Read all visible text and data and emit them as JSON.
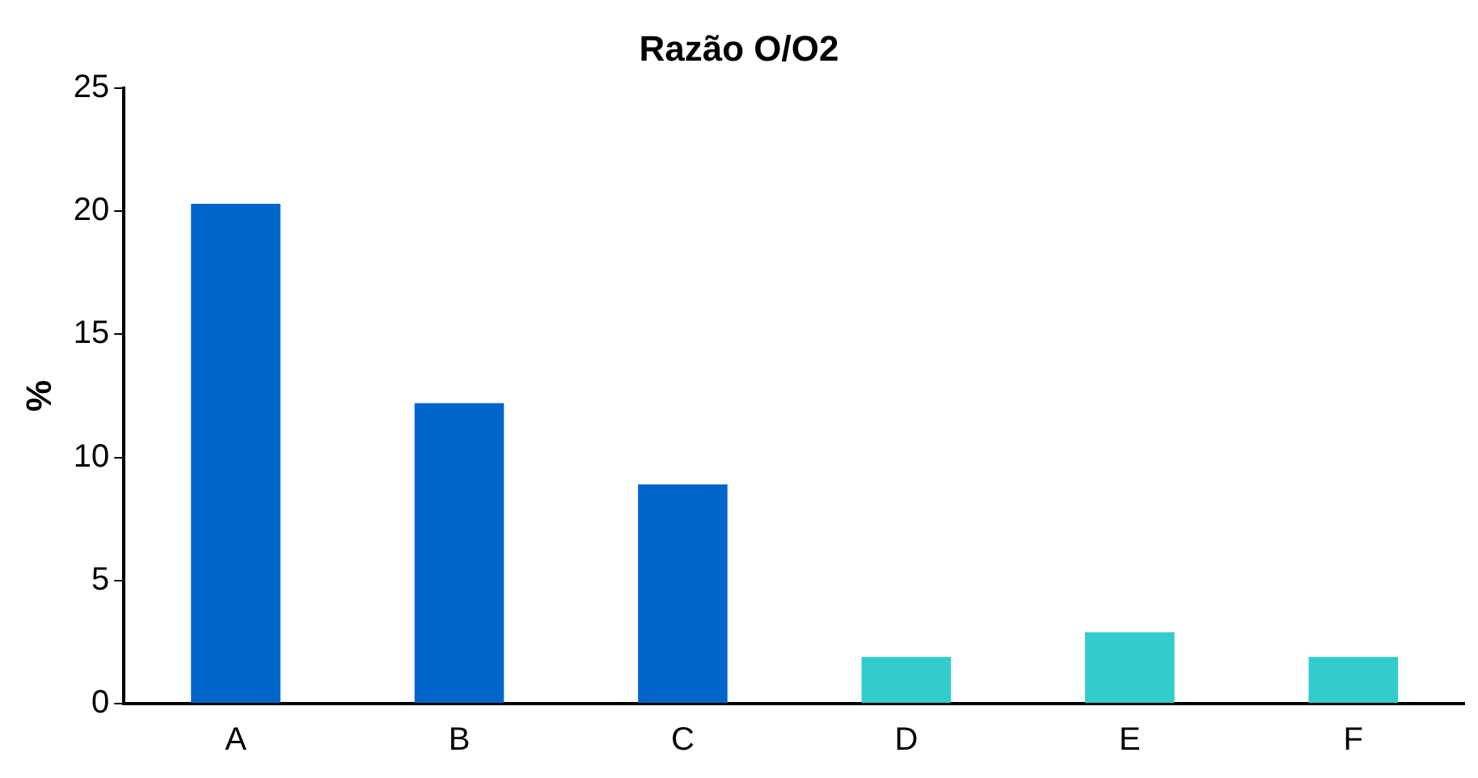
{
  "chart_data": {
    "type": "bar",
    "title": "Razão O/O2",
    "ylabel": "%",
    "categories": [
      "A",
      "B",
      "C",
      "D",
      "E",
      "F"
    ],
    "values": [
      20.3,
      12.2,
      8.9,
      1.9,
      2.9,
      1.9
    ],
    "colors": [
      "#0066cc",
      "#0066cc",
      "#0066cc",
      "#33cccc",
      "#33cccc",
      "#33cccc"
    ],
    "ylim": [
      0,
      25
    ],
    "yticks": [
      0,
      5,
      10,
      15,
      20,
      25
    ],
    "grid": false,
    "legend": false
  }
}
